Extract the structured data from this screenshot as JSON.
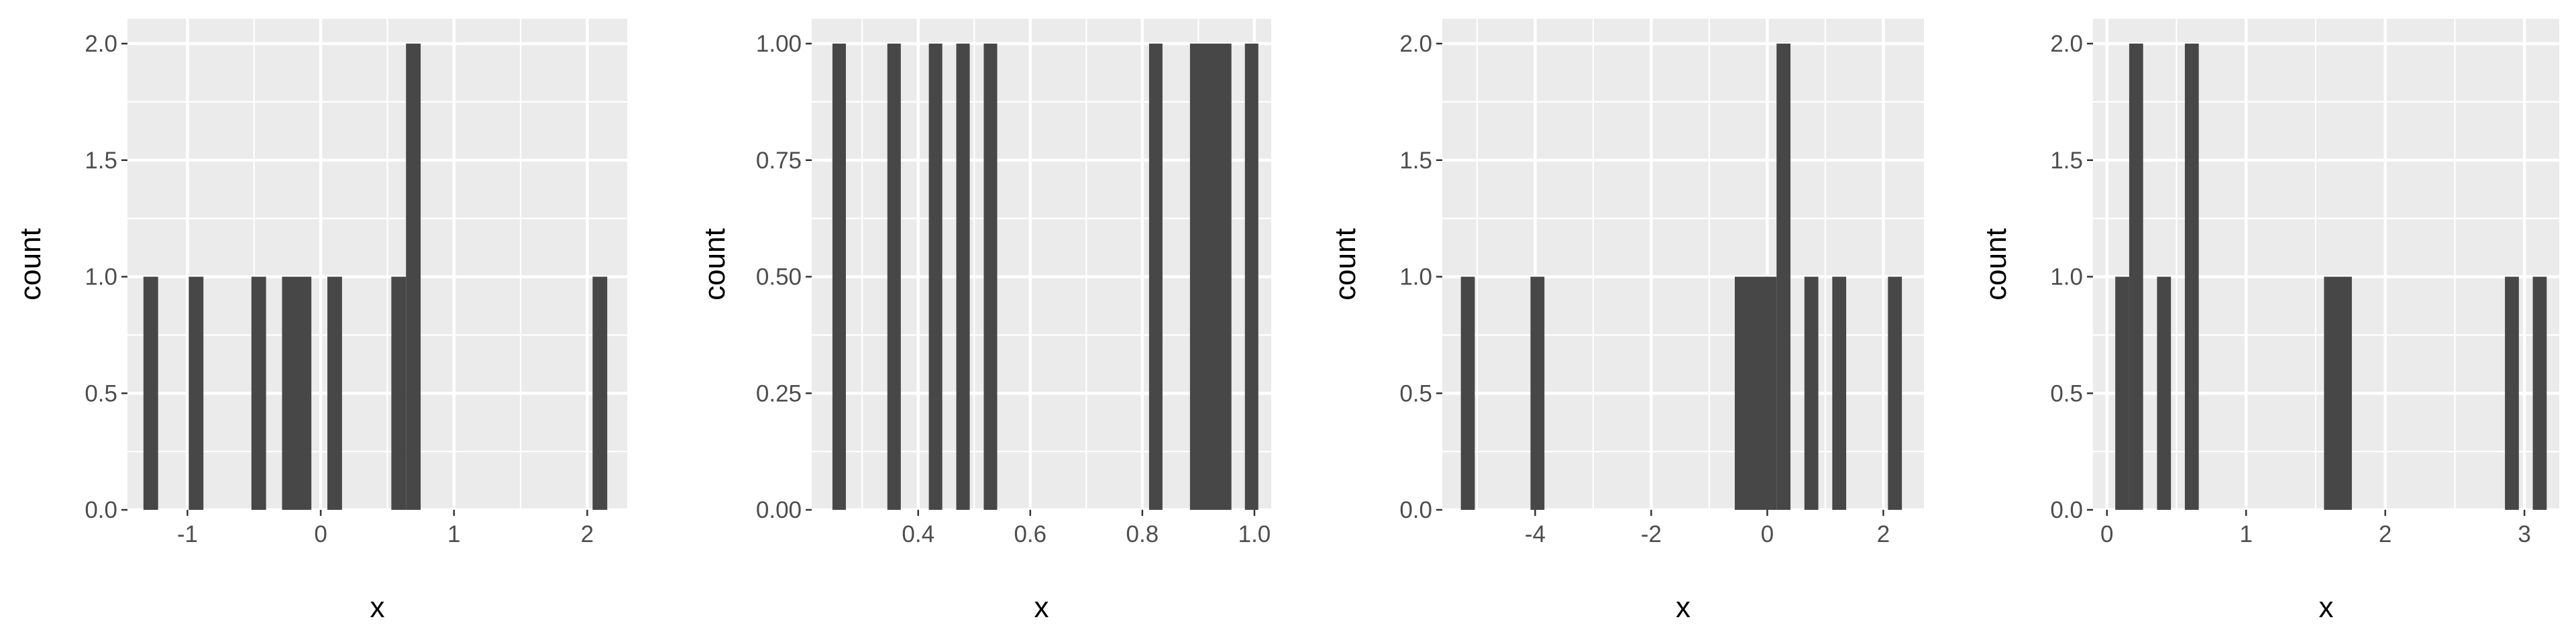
{
  "chart_data": [
    {
      "type": "bar",
      "subtype": "histogram",
      "xlabel": "x",
      "ylabel": "count",
      "xlim": [
        -1.45,
        2.3
      ],
      "ylim": [
        0,
        2.0
      ],
      "xticks": [
        -1,
        0,
        1,
        2
      ],
      "xtick_labels": [
        "-1",
        "0",
        "1",
        "2"
      ],
      "yticks": [
        0,
        0.5,
        1.0,
        1.5,
        2.0
      ],
      "ytick_labels": [
        "0.0",
        "0.5",
        "1.0",
        "1.5",
        "2.0"
      ],
      "bars": [
        {
          "x0": -1.33,
          "x1": -1.22,
          "count": 1
        },
        {
          "x0": -0.99,
          "x1": -0.88,
          "count": 1
        },
        {
          "x0": -0.52,
          "x1": -0.41,
          "count": 1
        },
        {
          "x0": -0.29,
          "x1": -0.07,
          "count": 1
        },
        {
          "x0": 0.05,
          "x1": 0.16,
          "count": 1
        },
        {
          "x0": 0.53,
          "x1": 0.64,
          "count": 1
        },
        {
          "x0": 0.64,
          "x1": 0.75,
          "count": 2
        },
        {
          "x0": 2.04,
          "x1": 2.15,
          "count": 1
        }
      ],
      "grid": true
    },
    {
      "type": "bar",
      "subtype": "histogram",
      "xlabel": "x",
      "ylabel": "count",
      "xlim": [
        0.21,
        1.03
      ],
      "ylim": [
        0,
        1.0
      ],
      "xticks": [
        0.4,
        0.6,
        0.8,
        1.0
      ],
      "xtick_labels": [
        "0.4",
        "0.6",
        "0.8",
        "1.0"
      ],
      "yticks": [
        0,
        0.25,
        0.5,
        0.75,
        1.0
      ],
      "ytick_labels": [
        "0.00",
        "0.25",
        "0.50",
        "0.75",
        "1.00"
      ],
      "bars": [
        {
          "x0": 0.247,
          "x1": 0.271,
          "count": 1
        },
        {
          "x0": 0.345,
          "x1": 0.369,
          "count": 1
        },
        {
          "x0": 0.419,
          "x1": 0.443,
          "count": 1
        },
        {
          "x0": 0.468,
          "x1": 0.492,
          "count": 1
        },
        {
          "x0": 0.517,
          "x1": 0.541,
          "count": 1
        },
        {
          "x0": 0.812,
          "x1": 0.836,
          "count": 1
        },
        {
          "x0": 0.885,
          "x1": 0.959,
          "count": 1
        },
        {
          "x0": 0.983,
          "x1": 1.007,
          "count": 1
        }
      ],
      "grid": true
    },
    {
      "type": "bar",
      "subtype": "histogram",
      "xlabel": "x",
      "ylabel": "count",
      "xlim": [
        -5.6,
        2.7
      ],
      "ylim": [
        0,
        2.0
      ],
      "xticks": [
        -4,
        -2,
        0,
        2
      ],
      "xtick_labels": [
        "-4",
        "-2",
        "0",
        "2"
      ],
      "yticks": [
        0,
        0.5,
        1.0,
        1.5,
        2.0
      ],
      "ytick_labels": [
        "0.0",
        "0.5",
        "1.0",
        "1.5",
        "2.0"
      ],
      "bars": [
        {
          "x0": -5.28,
          "x1": -5.04,
          "count": 1
        },
        {
          "x0": -4.08,
          "x1": -3.84,
          "count": 1
        },
        {
          "x0": -0.56,
          "x1": 0.16,
          "count": 1
        },
        {
          "x0": 0.16,
          "x1": 0.4,
          "count": 2
        },
        {
          "x0": 0.64,
          "x1": 0.88,
          "count": 1
        },
        {
          "x0": 1.12,
          "x1": 1.36,
          "count": 1
        },
        {
          "x0": 2.08,
          "x1": 2.32,
          "count": 1
        }
      ],
      "grid": true
    },
    {
      "type": "bar",
      "subtype": "histogram",
      "xlabel": "x",
      "ylabel": "count",
      "xlim": [
        -0.1,
        3.25
      ],
      "ylim": [
        0,
        2.0
      ],
      "xticks": [
        0,
        1,
        2,
        3
      ],
      "xtick_labels": [
        "0",
        "1",
        "2",
        "3"
      ],
      "yticks": [
        0,
        0.5,
        1.0,
        1.5,
        2.0
      ],
      "ytick_labels": [
        "0.0",
        "0.5",
        "1.0",
        "1.5",
        "2.0"
      ],
      "bars": [
        {
          "x0": 0.06,
          "x1": 0.16,
          "count": 1
        },
        {
          "x0": 0.16,
          "x1": 0.26,
          "count": 2
        },
        {
          "x0": 0.36,
          "x1": 0.46,
          "count": 1
        },
        {
          "x0": 0.56,
          "x1": 0.66,
          "count": 2
        },
        {
          "x0": 1.56,
          "x1": 1.76,
          "count": 1
        },
        {
          "x0": 2.86,
          "x1": 2.96,
          "count": 1
        },
        {
          "x0": 3.06,
          "x1": 3.16,
          "count": 1
        }
      ],
      "grid": true
    }
  ]
}
